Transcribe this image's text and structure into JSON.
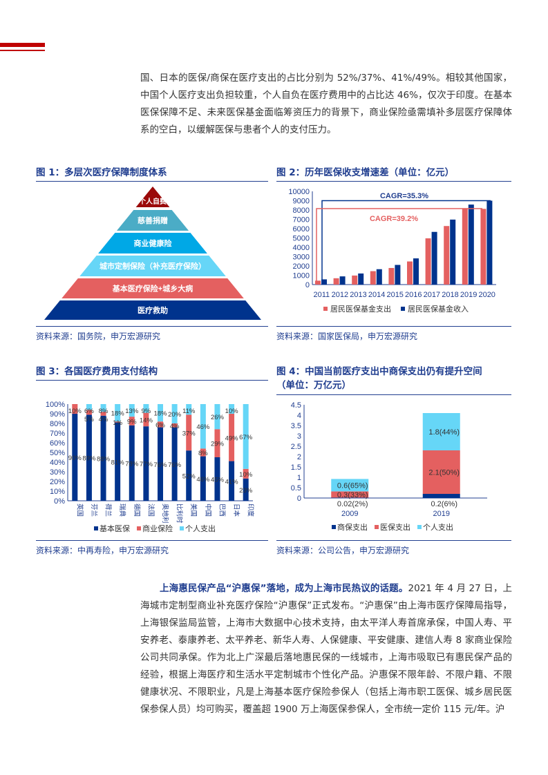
{
  "header_marks": {
    "color": "#c00000"
  },
  "top_paragraph": "国、日本的医保/商保在医疗支出的占比分别为 52%/37%、41%/49%。相较其他国家，中国个人医疗支出负担较重，个人自负在医疗费用中的占比达 46%，仅次于印度。在基本医保保障不足、未来医保基金面临筹资压力的背景下，商业保险亟需填补多层医疗保障体系的空白，以缓解医保与患者个人的支付压力。",
  "fig1": {
    "title": "图 1：多层次医疗保障制度体系",
    "source": "资料来源：国务院，申万宏源研究",
    "layers": [
      {
        "label": "个人自费",
        "color": "#9b0a0a"
      },
      {
        "label": "慈善捐赠",
        "color": "#4bacc6"
      },
      {
        "label": "商业健康险",
        "color": "#00a8e6"
      },
      {
        "label": "城市定制保险（补充医疗保险）",
        "color": "#66d6f7"
      },
      {
        "label": "基本医疗保险+城乡大病",
        "color": "#e46060"
      },
      {
        "label": "医疗救助",
        "color": "#00338d"
      }
    ]
  },
  "fig2": {
    "title": "图 2：历年医保收支增速差（单位：亿元）",
    "source": "资料来源：国家医保局，申万宏源研究"
  },
  "fig3": {
    "title": "图 3：各国医疗费用支付结构",
    "source": "资料来源：中再寿险，申万宏源研究"
  },
  "fig4": {
    "title_line1": "图 4：中国当前医疗支出中商保支出仍有提升空间",
    "title_line2": "（单位：万亿元）",
    "source": "资料来源：公司公告，申万宏源研究"
  },
  "chart_data": [
    {
      "type": "bar",
      "categories": [
        "2011",
        "2012",
        "2013",
        "2014",
        "2015",
        "2016",
        "2017",
        "2018",
        "2019",
        "2020"
      ],
      "series": [
        {
          "name": "居民医保基金支出",
          "color": "#e46060",
          "values": [
            420,
            680,
            970,
            1440,
            1780,
            2480,
            4960,
            6280,
            8190,
            8120
          ]
        },
        {
          "name": "居民医保基金收入",
          "color": "#00338d",
          "values": [
            560,
            880,
            1190,
            1650,
            2110,
            2810,
            5650,
            6970,
            8580,
            9000
          ]
        }
      ],
      "ylim": [
        0,
        10000
      ],
      "yticks": [
        0,
        1000,
        2000,
        3000,
        4000,
        5000,
        6000,
        7000,
        8000,
        9000,
        10000
      ],
      "annotations": [
        {
          "text": "CAGR=35.3%",
          "color": "#1f3d8f"
        },
        {
          "text": "CAGR=39.2%",
          "color": "#e46060"
        }
      ],
      "legend": "bottom"
    },
    {
      "type": "bar",
      "stacked": true,
      "categories": [
        "英国",
        "芬兰",
        "荷兰",
        "瑞典",
        "德国",
        "法国",
        "奥地利",
        "比利时",
        "美国",
        "中国",
        "巴西",
        "日本",
        "印度"
      ],
      "series": [
        {
          "name": "基本医保",
          "color": "#00338d",
          "values": [
            90,
            89,
            88,
            81,
            78,
            77,
            76,
            76,
            52,
            46,
            45,
            41,
            23
          ]
        },
        {
          "name": "商业保险",
          "color": "#e46060",
          "values": [
            10,
            5,
            4,
            1,
            9,
            14,
            6,
            4,
            37,
            8,
            29,
            49,
            10
          ]
        },
        {
          "name": "个人支出",
          "color": "#66d6f7",
          "values": [
            0,
            6,
            8,
            18,
            13,
            9,
            18,
            20,
            11,
            46,
            26,
            10,
            67
          ]
        }
      ],
      "ylim": [
        0,
        100
      ],
      "yticks": [
        "0%",
        "10%",
        "20%",
        "30%",
        "40%",
        "50%",
        "60%",
        "70%",
        "80%",
        "90%",
        "100%"
      ],
      "legend": "bottom"
    },
    {
      "type": "bar",
      "stacked": true,
      "categories": [
        "2009",
        "2019"
      ],
      "series": [
        {
          "name": "商保支出",
          "color": "#00338d",
          "values": [
            0.02,
            0.2
          ],
          "labels": [
            "0.02(2%)",
            "0.2(6%)"
          ]
        },
        {
          "name": "医保支出",
          "color": "#e46060",
          "values": [
            0.3,
            2.1
          ],
          "labels": [
            "0.3(33%)",
            "2.1(50%)"
          ]
        },
        {
          "name": "个人支出",
          "color": "#66d6f7",
          "values": [
            0.6,
            1.8
          ],
          "labels": [
            "0.6(65%)",
            "1.8(44%)"
          ]
        }
      ],
      "ylim": [
        0,
        4.5
      ],
      "yticks": [
        "0",
        "0.5",
        "1",
        "1.5",
        "2",
        "2.5",
        "3",
        "3.5",
        "4",
        "4.5"
      ],
      "legend": "bottom"
    }
  ],
  "bottom_paragraph": {
    "bold": "上海惠民保产品“沪惠保”落地，成为上海市民热议的话题。",
    "text": "2021 年 4 月 27 日，上海城市定制型商业补充医疗保险“沪惠保”正式发布。“沪惠保”由上海市医疗保障局指导，上海银保监局监管，上海市大数据中心技术支持，由太平洋人寿首席承保，中国人寿、平安养老、泰康养老、太平养老、新华人寿、人保健康、平安健康、建信人寿 8 家商业保险公司共同承保。作为北上广深最后落地惠民保的一线城市，上海市吸取已有惠民保产品的经验，根据上海医疗和生活水平定制城市个性化产品。沪惠保不限年龄、不限户籍、不限健康状况、不限职业，凡是上海基本医疗保险参保人（包括上海市职工医保、城乡居民医保参保人员）均可购买，覆盖超 1900 万上海医保参保人，全市统一定价 115 元/年。沪"
  }
}
